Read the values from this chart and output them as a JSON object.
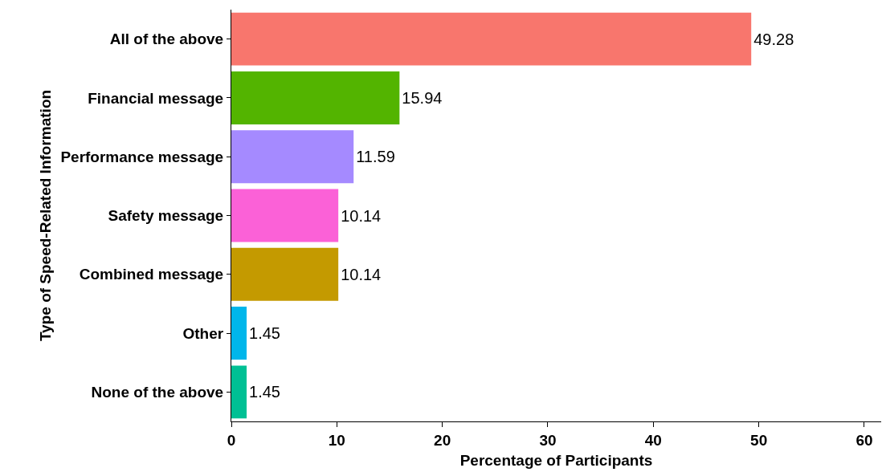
{
  "chart_data": {
    "type": "bar",
    "orientation": "horizontal",
    "xlabel": "Percentage of Participants",
    "ylabel": "Type of Speed-Related Information",
    "categories": [
      "All of the above",
      "Financial message",
      "Performance message",
      "Safety message",
      "Combined message",
      "Other",
      "None of the above"
    ],
    "values": [
      49.28,
      15.94,
      11.59,
      10.14,
      10.14,
      1.45,
      1.45
    ],
    "colors": [
      "#f8766d",
      "#53b400",
      "#a58aff",
      "#fb61d7",
      "#c49a00",
      "#00b6eb",
      "#00c094"
    ],
    "xlim": [
      0,
      61.6
    ],
    "xticks": [
      0,
      10,
      20,
      30,
      40,
      50,
      60
    ],
    "grid": false,
    "data_labels": true
  }
}
